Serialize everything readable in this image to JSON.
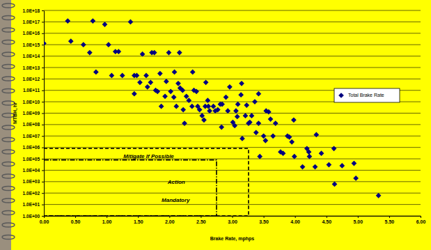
{
  "chart_data": {
    "type": "scatter",
    "x_label": "Brake Rate, mphps",
    "y_label": "MTBH, hr",
    "log": "y",
    "grid": true,
    "legend": "right",
    "xlim": [
      0,
      6
    ],
    "ylim": [
      1,
      1e+18
    ],
    "xticks": [
      {
        "value": 0,
        "label": "0.00"
      },
      {
        "value": 0.5,
        "label": "0.50"
      },
      {
        "value": 1,
        "label": "1.00"
      },
      {
        "value": 1.5,
        "label": "1.50"
      },
      {
        "value": 2,
        "label": "2.00"
      },
      {
        "value": 2.5,
        "label": "2.50"
      },
      {
        "value": 3,
        "label": "3.00"
      },
      {
        "value": 3.5,
        "label": "3.50"
      },
      {
        "value": 4,
        "label": "4.00"
      },
      {
        "value": 4.5,
        "label": "4.50"
      },
      {
        "value": 5,
        "label": "5.00"
      },
      {
        "value": 5.5,
        "label": "5.50"
      },
      {
        "value": 6,
        "label": "6.00"
      }
    ],
    "yticks": [
      {
        "value": 1,
        "label": "1.0E+00"
      },
      {
        "value": 10.0,
        "label": "1.0E+01"
      },
      {
        "value": 100.0,
        "label": "1.0E+02"
      },
      {
        "value": 1000.0,
        "label": "1.0E+03"
      },
      {
        "value": 10000.0,
        "label": "1.0E+04"
      },
      {
        "value": 100000.0,
        "label": "1.0E+05"
      },
      {
        "value": 1000000.0,
        "label": "1.0E+06"
      },
      {
        "value": 10000000.0,
        "label": "1.0E+07"
      },
      {
        "value": 100000000.0,
        "label": "1.0E+08"
      },
      {
        "value": 1000000000.0,
        "label": "1.0E+09"
      },
      {
        "value": 10000000000.0,
        "label": "1.0E+10"
      },
      {
        "value": 100000000000.0,
        "label": "1.0E+11"
      },
      {
        "value": 1000000000000.0,
        "label": "1.0E+12"
      },
      {
        "value": 10000000000000.0,
        "label": "1.0E+13"
      },
      {
        "value": 100000000000000.0,
        "label": "1.0E+14"
      },
      {
        "value": 1000000000000000.0,
        "label": "1.0E+15"
      },
      {
        "value": 1e+16,
        "label": "1.0E+16"
      },
      {
        "value": 1e+17,
        "label": "1.0E+17"
      },
      {
        "value": 1e+18,
        "label": "1.0E+18"
      }
    ],
    "series": [
      {
        "name": "Total Brake Rate",
        "color": "#000080",
        "marker": "diamond",
        "x": [
          0.0,
          0.38,
          0.43,
          0.63,
          0.73,
          0.78,
          0.83,
          0.97,
          1.03,
          1.08,
          1.14,
          1.19,
          1.25,
          1.38,
          1.44,
          1.48,
          1.53,
          1.57,
          1.63,
          1.72,
          1.76,
          1.44,
          1.65,
          1.7,
          1.78,
          1.81,
          1.85,
          1.87,
          1.93,
          1.95,
          1.99,
          2.02,
          2.07,
          2.11,
          2.08,
          2.14,
          2.16,
          2.17,
          2.21,
          2.22,
          2.24,
          2.27,
          2.31,
          2.36,
          2.37,
          2.39,
          2.43,
          2.45,
          2.48,
          2.52,
          2.55,
          2.57,
          2.62,
          2.61,
          2.58,
          2.64,
          2.7,
          2.73,
          2.77,
          2.81,
          2.84,
          2.83,
          2.9,
          2.93,
          2.96,
          3.01,
          3.04,
          3.06,
          3.09,
          3.08,
          3.14,
          3.15,
          3.16,
          3.21,
          3.23,
          3.26,
          3.28,
          3.31,
          3.36,
          3.38,
          3.42,
          3.42,
          3.44,
          3.5,
          3.53,
          3.54,
          3.58,
          3.61,
          3.65,
          3.69,
          3.77,
          3.81,
          3.88,
          3.91,
          3.95,
          3.98,
          3.99,
          4.12,
          4.19,
          4.22,
          4.23,
          4.32,
          4.34,
          4.42,
          4.54,
          4.62,
          4.63,
          4.75,
          4.94,
          4.97,
          5.33
        ],
        "values": [
          1300000000000000.0,
          1.2e+17,
          2000000000000000.0,
          1000000000000000.0,
          200000000000000.0,
          1.2e+17,
          4000000000000.0,
          6e+16,
          1000000000000000.0,
          2000000000000.0,
          250000000000000.0,
          250000000000000.0,
          2000000000000.0,
          1e+17,
          2000000000000.0,
          2000000000000.0,
          500000000000.0,
          150000000000000.0,
          2000000000000.0,
          200000000000000.0,
          200000000000000.0,
          50000000000.0,
          200000000000.0,
          500000000000.0,
          100000000000.0,
          80000000000.0,
          3000000000000.0,
          4000000000.0,
          30000000000.0,
          600000000000.0,
          200000000000000.0,
          80000000000.0,
          25000000000.0,
          4000000000.0,
          4000000000000.0,
          400000000000.0,
          200000000000000.0,
          160000000000.0,
          100000000000.0,
          2000000000.0,
          130000000.0,
          30000000000.0,
          13000000000.0,
          4000000000.0,
          4000000000000.0,
          100000000000.0,
          80000000000.0,
          4000000000.0,
          2000000000.0,
          600000000.0,
          250000000.0,
          4000000000.0,
          4000000000.0,
          13000000000.0,
          500000000000.0,
          1600000000.0,
          4000000000.0,
          1600000000.0,
          2000000000.0,
          6000000000.0,
          6000000000.0,
          60000000.0,
          25000000000.0,
          1600000000.0,
          200000000000.0,
          160000000.0,
          80000000.0,
          1600000000.0,
          6000000000.0,
          500000000.0,
          40000000000.0,
          400000000000.0,
          6000000.0,
          600000000.0,
          5000000000.0,
          130000000.0,
          160000000.0,
          600000000.0,
          10000000000.0,
          20000000.0,
          50000000000.0,
          130000000.0,
          160000.0,
          10000000.0,
          4000000.0,
          1600000000.0,
          1300000000.0,
          300000000.0,
          10000000.0,
          130000000.0,
          400000.0,
          300000.0,
          10000000.0,
          8000000.0,
          3000000.0,
          250000000.0,
          160000.0,
          20000.0,
          800000.0,
          400000.0,
          160000.0,
          20000.0,
          13000000.0,
          300000.0,
          30000.0,
          800000.0,
          600.0,
          25000.0,
          40000.0,
          2000.0,
          60.0
        ]
      }
    ],
    "regions": [
      {
        "xlim": [
          0,
          3.26
        ],
        "ylim": [
          1,
          800000.0
        ],
        "line_style": "dashed"
      },
      {
        "xlim": [
          0,
          2.75
        ],
        "ylim": [
          1,
          80000.0
        ],
        "line_style": "dashdot"
      }
    ],
    "annotations": [
      {
        "text": "Mitigate If Possible",
        "x": 1.67,
        "y": 180000.0
      },
      {
        "text": "Action",
        "x": 2.11,
        "y": 1000.0
      },
      {
        "text": "Mandatory",
        "x": 2.1,
        "y": 25
      }
    ]
  }
}
